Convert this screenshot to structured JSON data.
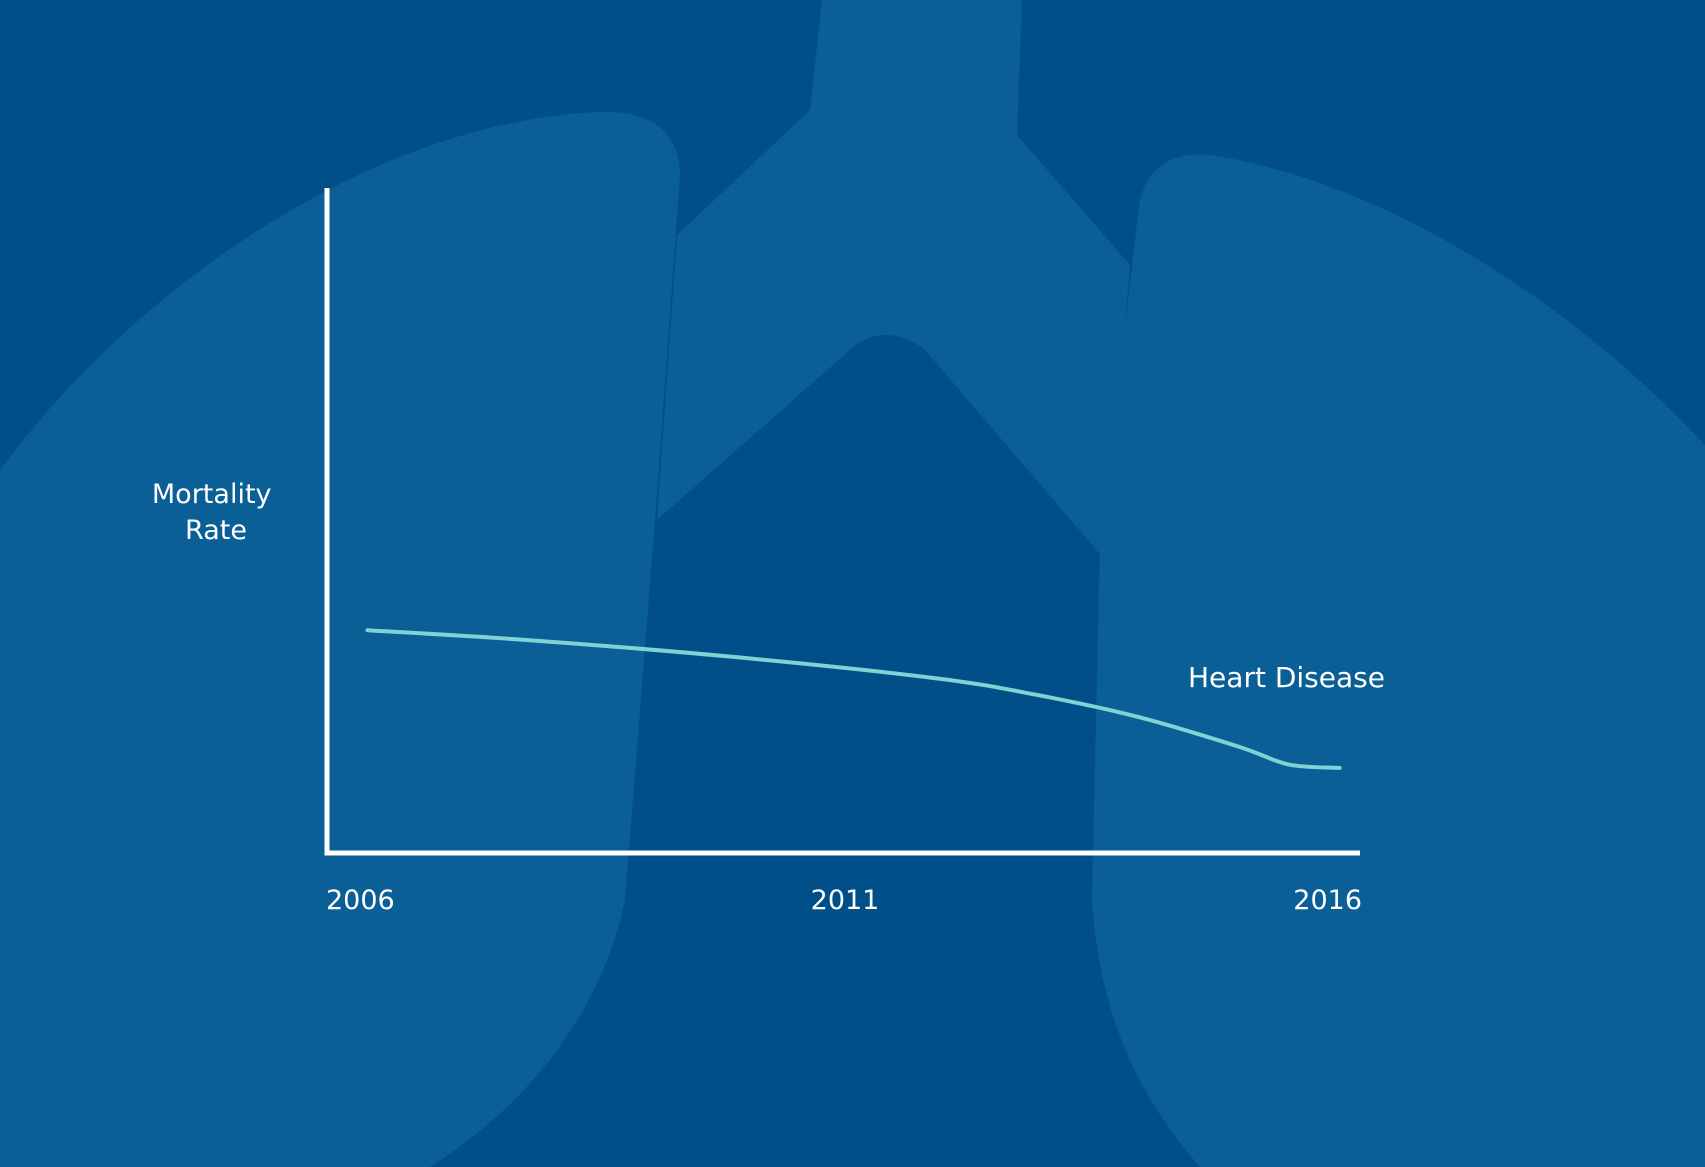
{
  "background": {
    "color": "#004f88",
    "illustration_color": "#0a5f96",
    "illustration": "lungs-illustration"
  },
  "chart_data": {
    "type": "line",
    "title": "",
    "xlabel": "",
    "ylabel": [
      "Mortality",
      "Rate"
    ],
    "x_ticks": [
      "2006",
      "2011",
      "2016"
    ],
    "xlim": [
      2006,
      2016.2
    ],
    "ylim": [
      0,
      100
    ],
    "y_ticks_shown": false,
    "grid": false,
    "legend": "none",
    "axis_color": "#ffffff",
    "series": [
      {
        "name": "Heart Disease",
        "color": "#7fd3d3",
        "x": [
          2006.4,
          2008,
          2010,
          2012,
          2013,
          2014,
          2015,
          2015.5,
          2016
        ],
        "y": [
          33.5,
          32.0,
          29.5,
          26.3,
          23.8,
          20.5,
          16.0,
          13.3,
          12.8
        ]
      }
    ]
  }
}
